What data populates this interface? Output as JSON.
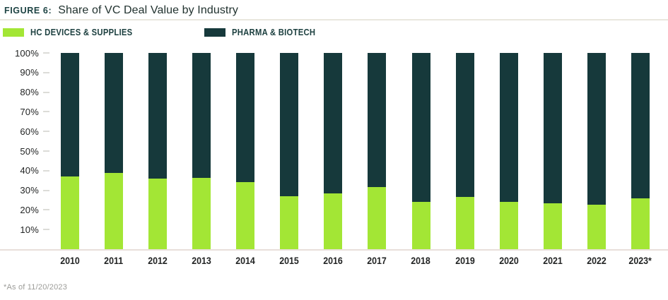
{
  "header": {
    "figure_label": "FIGURE 6:",
    "title": "Share of VC Deal Value by Industry"
  },
  "footnote": "*As of 11/20/2023",
  "colors": {
    "hc_devices_green": "#a3e635",
    "pharma_teal": "#16393b",
    "legend_text": "#1d4040",
    "axis_text": "#222424",
    "tick_dash": "#dcdcd8",
    "title_rule": "#e9e7de",
    "baseline": "#e8dfda",
    "footnote_gray": "#9c9c98"
  },
  "chart_data": {
    "type": "bar",
    "stacked": true,
    "title": "Share of VC Deal Value by Industry",
    "xlabel": "",
    "ylabel": "",
    "ylim": [
      0,
      100
    ],
    "grid": false,
    "legend_position": "top-left",
    "y_ticks": [
      "100%",
      "90%",
      "80%",
      "70%",
      "60%",
      "50%",
      "40%",
      "30%",
      "20%",
      "10%"
    ],
    "y_tick_values": [
      100,
      90,
      80,
      70,
      60,
      50,
      40,
      30,
      20,
      10
    ],
    "categories": [
      "2010",
      "2011",
      "2012",
      "2013",
      "2014",
      "2015",
      "2016",
      "2017",
      "2018",
      "2019",
      "2020",
      "2021",
      "2022",
      "2023*"
    ],
    "series": [
      {
        "name": "HC DEVICES & SUPPLIES",
        "color": "#a3e635",
        "values": [
          37,
          39,
          36,
          36.5,
          34,
          27,
          28.5,
          31.5,
          24,
          26.5,
          24,
          23.5,
          22.5,
          26
        ]
      },
      {
        "name": "PHARMA & BIOTECH",
        "color": "#16393b",
        "values": [
          63,
          61,
          64,
          63.5,
          66,
          73,
          71.5,
          68.5,
          76,
          73.5,
          76,
          76.5,
          77.5,
          74
        ]
      }
    ]
  }
}
